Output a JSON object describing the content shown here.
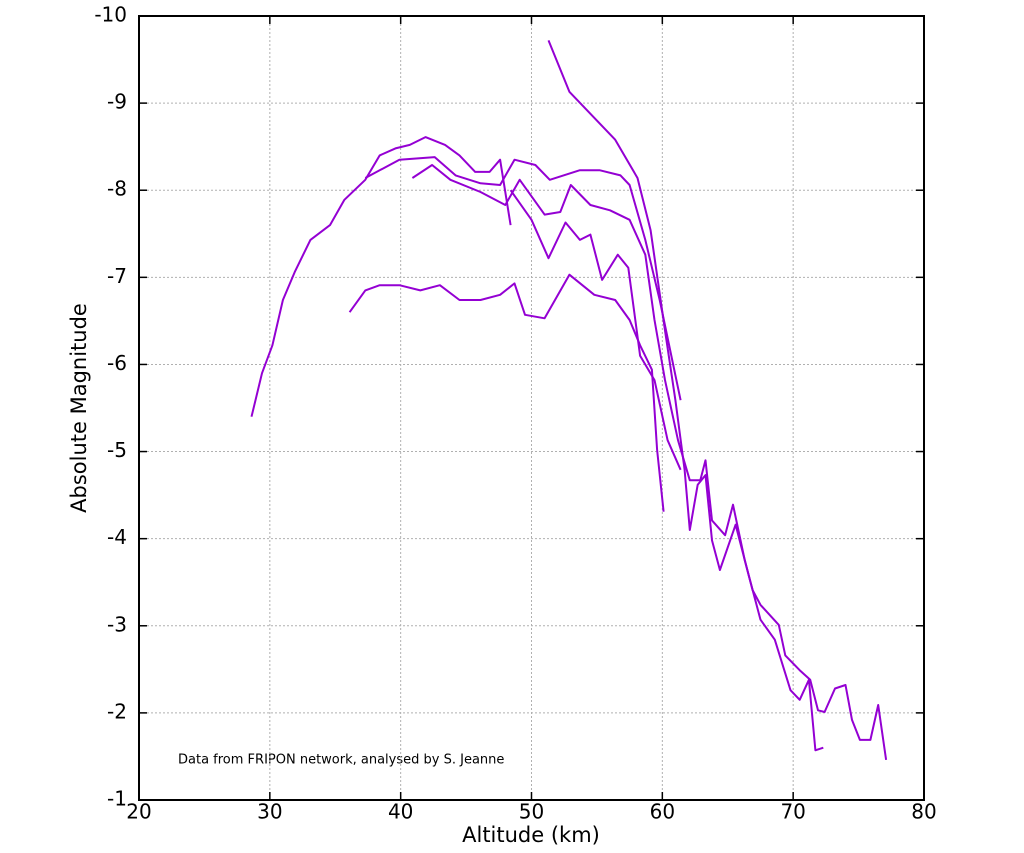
{
  "chart_data": {
    "type": "line",
    "xlabel": "Altitude (km)",
    "ylabel": "Absolute Magnitude",
    "annotation": "Data from FRIPON network, analysed by S. Jeanne",
    "xlim": [
      20,
      80
    ],
    "xticks": [
      20,
      30,
      40,
      50,
      60,
      70,
      80
    ],
    "ylim": [
      -1,
      -10
    ],
    "yticks": [
      -10,
      -9,
      -8,
      -7,
      -6,
      -5,
      -4,
      -3,
      -2,
      -1
    ],
    "grid": true,
    "series": [
      {
        "color": "#9400d3",
        "x": [
          28.6,
          29.4,
          30.2,
          31.0,
          31.9,
          33.1,
          34.6,
          35.7,
          37.3,
          38.4,
          39.6,
          40.7,
          41.9,
          43.4,
          44.5,
          45.7,
          46.8,
          47.6,
          48.4
        ],
        "values": [
          -5.4,
          -5.9,
          -6.22,
          -6.74,
          -7.06,
          -7.43,
          -7.6,
          -7.89,
          -8.12,
          -8.4,
          -8.48,
          -8.52,
          -8.61,
          -8.52,
          -8.4,
          -8.21,
          -8.21,
          -8.35,
          -7.6
        ]
      },
      {
        "color": "#9400d3",
        "x": [
          37.3,
          39.9,
          42.6,
          44.2,
          46.1,
          47.6,
          48.7,
          50.3,
          51.4,
          53.7,
          55.2,
          56.8,
          57.5,
          58.7,
          59.8,
          61.4
        ],
        "values": [
          -8.14,
          -8.35,
          -8.38,
          -8.17,
          -8.08,
          -8.06,
          -8.35,
          -8.29,
          -8.12,
          -8.23,
          -8.23,
          -8.17,
          -8.06,
          -7.43,
          -6.74,
          -5.59
        ]
      },
      {
        "color": "#9400d3",
        "x": [
          51.3,
          52.9,
          56.4,
          58.1,
          59.1,
          60.2,
          61.0,
          61.7,
          62.1,
          62.7,
          63.3,
          63.8,
          64.4,
          65.6,
          66.6,
          67.5,
          68.6,
          69.8,
          70.5,
          71.2,
          71.7,
          72.3
        ],
        "values": [
          -9.72,
          -9.13,
          -8.58,
          -8.14,
          -7.54,
          -6.39,
          -5.59,
          -4.79,
          -4.1,
          -4.62,
          -4.73,
          -3.98,
          -3.64,
          -4.16,
          -3.58,
          -3.07,
          -2.84,
          -2.26,
          -2.15,
          -2.38,
          -1.57,
          -1.6
        ]
      },
      {
        "color": "#9400d3",
        "x": [
          40.9,
          42.4,
          43.8,
          46.1,
          48.0,
          49.1,
          51.0,
          52.2,
          53.0,
          54.5,
          56.0,
          57.5,
          58.7,
          59.4,
          60.2,
          61.2,
          62.1,
          62.9,
          63.3,
          63.8,
          64.8,
          65.4,
          66.3,
          66.9,
          67.5,
          68.9,
          69.4,
          70.5,
          71.3,
          71.9,
          72.4,
          73.2,
          74.0,
          74.5,
          75.1,
          75.9,
          76.5,
          77.1
        ],
        "values": [
          -8.14,
          -8.29,
          -8.12,
          -7.98,
          -7.83,
          -8.12,
          -7.72,
          -7.75,
          -8.06,
          -7.83,
          -7.77,
          -7.66,
          -7.26,
          -6.51,
          -5.82,
          -5.13,
          -4.67,
          -4.67,
          -4.9,
          -4.21,
          -4.04,
          -4.39,
          -3.75,
          -3.41,
          -3.24,
          -3.01,
          -2.66,
          -2.49,
          -2.38,
          -2.03,
          -2.01,
          -2.28,
          -2.32,
          -1.92,
          -1.69,
          -1.69,
          -2.09,
          -1.46
        ]
      },
      {
        "color": "#9400d3",
        "x": [
          36.1,
          37.3,
          38.4,
          39.9,
          41.5,
          43.0,
          44.5,
          46.1,
          47.6,
          48.7,
          49.5,
          51.0,
          52.9,
          54.8,
          56.4,
          57.5,
          58.3,
          59.2,
          59.6,
          60.1
        ],
        "values": [
          -6.6,
          -6.85,
          -6.91,
          -6.91,
          -6.85,
          -6.91,
          -6.74,
          -6.74,
          -6.8,
          -6.93,
          -6.57,
          -6.53,
          -7.03,
          -6.8,
          -6.74,
          -6.51,
          -6.22,
          -5.94,
          -5.02,
          -4.31
        ]
      },
      {
        "color": "#9400d3",
        "x": [
          48.4,
          50.0,
          51.3,
          52.6,
          53.7,
          54.5,
          55.4,
          56.6,
          57.4,
          58.3,
          59.4,
          60.4,
          61.4
        ],
        "values": [
          -8.0,
          -7.66,
          -7.22,
          -7.63,
          -7.43,
          -7.49,
          -6.97,
          -7.26,
          -7.11,
          -6.1,
          -5.82,
          -5.13,
          -4.79
        ]
      }
    ]
  }
}
